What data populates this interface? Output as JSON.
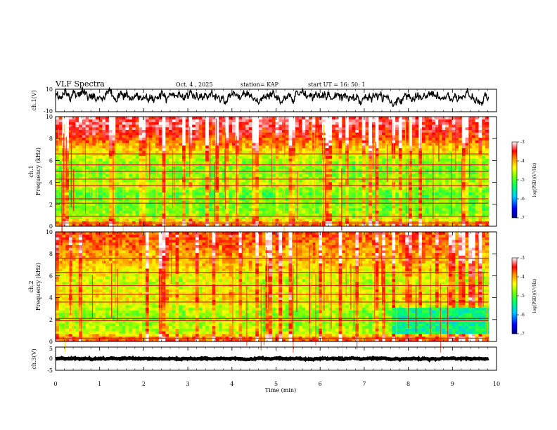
{
  "header": {
    "title": "VLF Spectra",
    "date": "Oct. 4 , 2025",
    "station": "station= KAP",
    "start": "start UT = 16: 50: 1"
  },
  "colors": {
    "trace": "#000000",
    "spectrogram_bg": "#ffffff",
    "colormap": [
      "#000080",
      "#0000ff",
      "#00c8ff",
      "#00ff64",
      "#7cff00",
      "#ffff00",
      "#ff8c00",
      "#ff0000",
      "#ffffff"
    ]
  },
  "chart_data": [
    {
      "type": "line",
      "name": "ch1-waveform",
      "ylabel": "ch.1(V)",
      "ylim": [
        -10,
        10
      ],
      "yticks": [
        "10",
        "-10"
      ],
      "xlim": [
        0,
        10
      ],
      "x_end_data": 9.82,
      "mean_level": 3,
      "amplitude": 5
    },
    {
      "type": "heatmap",
      "name": "ch1-spectrogram",
      "ylabel_channel": "ch.1",
      "ylabel": "Frequency (kHz)",
      "ylim": [
        0,
        10
      ],
      "yticks": [
        "0",
        "2",
        "4",
        "6",
        "8",
        "10"
      ],
      "xlim": [
        0,
        10
      ],
      "x_end_data": 9.82,
      "band_values": [
        {
          "f": 0.25,
          "v": -3.8
        },
        {
          "f": 0.8,
          "v": -4.6
        },
        {
          "f": 1.5,
          "v": -4.9
        },
        {
          "f": 2.3,
          "v": -4.8
        },
        {
          "f": 3.0,
          "v": -5.0
        },
        {
          "f": 3.8,
          "v": -4.5
        },
        {
          "f": 4.5,
          "v": -4.8
        },
        {
          "f": 5.3,
          "v": -4.9
        },
        {
          "f": 6.0,
          "v": -4.7
        },
        {
          "f": 7.0,
          "v": -4.2
        },
        {
          "f": 8.2,
          "v": -3.6
        },
        {
          "f": 9.4,
          "v": -3.3
        }
      ],
      "lines_khz": [
        0.3,
        0.9,
        2.1,
        2.5,
        3.7,
        4.3,
        5.0,
        5.6,
        6.6
      ],
      "colorbar": {
        "label": "log(PSD)(V²/Hz)",
        "min": -7,
        "max": -3,
        "ticks": [
          "-3",
          "-4",
          "-5",
          "-6",
          "-7"
        ]
      }
    },
    {
      "type": "heatmap",
      "name": "ch2-spectrogram",
      "ylabel_channel": "ch.2",
      "ylabel": "Frequency (kHz)",
      "ylim": [
        0,
        10
      ],
      "yticks": [
        "0",
        "2",
        "4",
        "6",
        "8",
        "10"
      ],
      "xlim": [
        0,
        10
      ],
      "x_end_data": 9.82,
      "band_values": [
        {
          "f": 0.25,
          "v": -3.7
        },
        {
          "f": 0.9,
          "v": -4.6
        },
        {
          "f": 1.6,
          "v": -4.7
        },
        {
          "f": 2.4,
          "v": -4.8
        },
        {
          "f": 3.1,
          "v": -4.6
        },
        {
          "f": 3.9,
          "v": -4.3
        },
        {
          "f": 4.6,
          "v": -4.4
        },
        {
          "f": 5.4,
          "v": -4.6
        },
        {
          "f": 6.2,
          "v": -4.4
        },
        {
          "f": 7.2,
          "v": -4.1
        },
        {
          "f": 8.4,
          "v": -3.9
        },
        {
          "f": 9.5,
          "v": -3.7
        }
      ],
      "quiet_region": {
        "t_start": 7.6,
        "t_end": 9.82,
        "f_start": 0.8,
        "f_end": 3.2,
        "v": -5.4
      },
      "lines_khz": [
        0.3,
        1.9,
        2.1,
        3.6,
        4.3,
        5.1,
        6.3,
        7.6
      ],
      "colorbar": {
        "label": "log(PSD)(V²/Hz)",
        "min": -7,
        "max": -3,
        "ticks": [
          "-3",
          "-4",
          "-5",
          "-6",
          "-7"
        ]
      }
    },
    {
      "type": "line",
      "name": "ch3-waveform",
      "ylabel": "ch.3(V)",
      "ylim": [
        -5,
        5
      ],
      "yticks": [
        "5",
        "0",
        "-5"
      ],
      "xlim": [
        0,
        10
      ],
      "x_end_data": 9.82,
      "mean_level": 0,
      "amplitude": 0.3
    }
  ],
  "xaxis": {
    "label": "Time (min)",
    "ticks": [
      "0",
      "1",
      "2",
      "3",
      "4",
      "5",
      "6",
      "7",
      "8",
      "9",
      "10"
    ]
  }
}
